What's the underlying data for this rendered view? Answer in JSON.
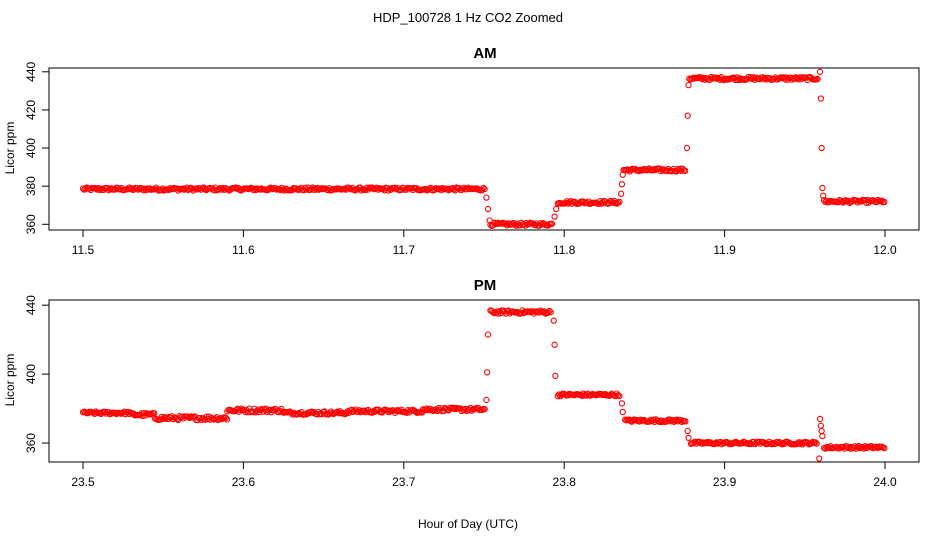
{
  "figure": {
    "title": "HDP_100728  1 Hz CO2 Zoomed",
    "xlabel": "Hour of Day (UTC)",
    "colors": {
      "points": "#ff0000",
      "axes": "#000000",
      "background": "#ffffff"
    }
  },
  "chart_data": [
    {
      "type": "scatter",
      "title": "AM",
      "xlabel": "",
      "ylabel": "Licor ppm",
      "xlim": [
        11.5,
        12.0
      ],
      "ylim": [
        357,
        442
      ],
      "xticks": [
        "11.5",
        "11.6",
        "11.7",
        "11.8",
        "11.9",
        "12.0"
      ],
      "yticks": [
        "360",
        "380",
        "400",
        "420",
        "440"
      ],
      "grid": false,
      "legend": "none",
      "series": [
        {
          "levels": [
            {
              "x_start": 11.5,
              "x_end": 11.751,
              "y": 378.5,
              "noise": 0.8
            },
            {
              "x_start": 11.754,
              "x_end": 11.793,
              "y": 360.0,
              "noise": 0.8
            },
            {
              "x_start": 11.796,
              "x_end": 11.835,
              "y": 371.5,
              "noise": 0.8
            },
            {
              "x_start": 11.837,
              "x_end": 11.876,
              "y": 388.5,
              "noise": 0.8
            },
            {
              "x_start": 11.878,
              "x_end": 11.958,
              "y": 436.5,
              "noise": 0.8
            },
            {
              "x_start": 11.962,
              "x_end": 12.0,
              "y": 372.0,
              "noise": 0.8
            }
          ],
          "transition_points": [
            {
              "x": 11.7515,
              "y": 374
            },
            {
              "x": 11.7525,
              "y": 368
            },
            {
              "x": 11.7535,
              "y": 362
            },
            {
              "x": 11.794,
              "y": 364
            },
            {
              "x": 11.795,
              "y": 368
            },
            {
              "x": 11.8355,
              "y": 376
            },
            {
              "x": 11.836,
              "y": 381
            },
            {
              "x": 11.8365,
              "y": 386
            },
            {
              "x": 11.8765,
              "y": 400
            },
            {
              "x": 11.877,
              "y": 417
            },
            {
              "x": 11.8775,
              "y": 433
            },
            {
              "x": 11.9595,
              "y": 440
            },
            {
              "x": 11.96,
              "y": 426
            },
            {
              "x": 11.9605,
              "y": 400
            },
            {
              "x": 11.961,
              "y": 379
            },
            {
              "x": 11.9615,
              "y": 375
            }
          ]
        }
      ]
    },
    {
      "type": "scatter",
      "title": "PM",
      "xlabel": "",
      "ylabel": "Licor ppm",
      "xlim": [
        23.5,
        24.0
      ],
      "ylim": [
        349,
        443
      ],
      "xticks": [
        "23.5",
        "23.6",
        "23.7",
        "23.8",
        "23.9",
        "24.0"
      ],
      "yticks": [
        "360",
        "400",
        "440"
      ],
      "grid": false,
      "legend": "none",
      "series": [
        {
          "levels": [
            {
              "x_start": 23.5,
              "x_end": 23.53,
              "y": 377.5,
              "noise": 0.8
            },
            {
              "x_start": 23.53,
              "x_end": 23.545,
              "y": 376.5,
              "noise": 1.0
            },
            {
              "x_start": 23.545,
              "x_end": 23.59,
              "y": 374.5,
              "noise": 1.2
            },
            {
              "x_start": 23.59,
              "x_end": 23.625,
              "y": 379.0,
              "noise": 1.2
            },
            {
              "x_start": 23.625,
              "x_end": 23.665,
              "y": 377.5,
              "noise": 1.0
            },
            {
              "x_start": 23.665,
              "x_end": 23.712,
              "y": 378.5,
              "noise": 1.0
            },
            {
              "x_start": 23.712,
              "x_end": 23.751,
              "y": 379.5,
              "noise": 1.0
            },
            {
              "x_start": 23.754,
              "x_end": 23.792,
              "y": 436.0,
              "noise": 1.0
            },
            {
              "x_start": 23.796,
              "x_end": 23.835,
              "y": 388.0,
              "noise": 0.8
            },
            {
              "x_start": 23.838,
              "x_end": 23.876,
              "y": 373.0,
              "noise": 0.8
            },
            {
              "x_start": 23.879,
              "x_end": 23.958,
              "y": 360.0,
              "noise": 0.8
            },
            {
              "x_start": 23.962,
              "x_end": 24.0,
              "y": 357.5,
              "noise": 0.8
            }
          ],
          "transition_points": [
            {
              "x": 23.7515,
              "y": 385
            },
            {
              "x": 23.752,
              "y": 401
            },
            {
              "x": 23.7525,
              "y": 423
            },
            {
              "x": 23.7935,
              "y": 431
            },
            {
              "x": 23.794,
              "y": 417
            },
            {
              "x": 23.7945,
              "y": 399
            },
            {
              "x": 23.836,
              "y": 383
            },
            {
              "x": 23.8365,
              "y": 378
            },
            {
              "x": 23.877,
              "y": 367
            },
            {
              "x": 23.8775,
              "y": 363
            },
            {
              "x": 23.959,
              "y": 351
            },
            {
              "x": 23.9595,
              "y": 374
            },
            {
              "x": 23.96,
              "y": 370
            },
            {
              "x": 23.9605,
              "y": 367
            },
            {
              "x": 23.961,
              "y": 364
            }
          ]
        }
      ]
    }
  ]
}
